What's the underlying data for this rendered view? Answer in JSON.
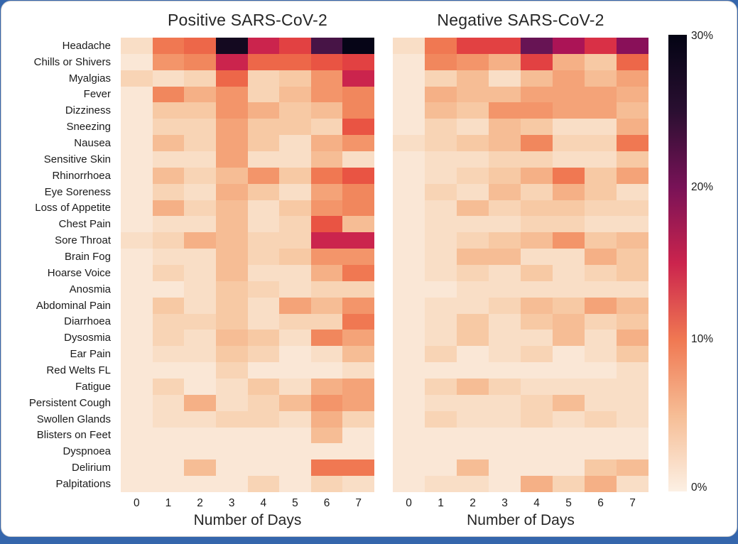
{
  "page": {
    "background_color": "#3566ac",
    "card_background": "#ffffff",
    "card_border_color": "#cccccc"
  },
  "colorbar": {
    "tick_labels": [
      "30%",
      "20%",
      "10%",
      "0%"
    ],
    "tick_values_percent": [
      30,
      20,
      10,
      0
    ],
    "orientation": "vertical",
    "position": "right"
  },
  "colors": {
    "rocket_r_scale_0_to_30": [
      "#FCF0E4",
      "#FAE7D6",
      "#F9DEC6",
      "#F8D4B5",
      "#F7C9A4",
      "#F6BD95",
      "#F5B086",
      "#F4A378",
      "#F3956A",
      "#F1875D",
      "#F07852",
      "#ED6749",
      "#E95443",
      "#E24142",
      "#D93046",
      "#CB244D",
      "#BB1A52",
      "#AB1456",
      "#9A1158",
      "#891059",
      "#781257",
      "#671454",
      "#57154E",
      "#471446",
      "#38123C",
      "#2A0F31",
      "#1E0C27",
      "#140920",
      "#0C071B",
      "#060517",
      "#030414"
    ]
  },
  "chart_data": [
    {
      "type": "heatmap",
      "title": "Positive SARS-CoV-2",
      "xlabel": "Number of Days",
      "colormap": "rocket_r",
      "vmin_percent": 0,
      "vmax_percent": 30,
      "grid": false,
      "columns": [
        "0",
        "1",
        "2",
        "3",
        "4",
        "5",
        "6",
        "7"
      ],
      "rows": [
        "Headache",
        "Chills or Shivers",
        "Myalgias",
        "Fever",
        "Dizziness",
        "Sneezing",
        "Nausea",
        "Sensitive Skin",
        "Rhinorrhoea",
        "Eye Soreness",
        "Loss of Appetite",
        "Chest Pain",
        "Sore Throat",
        "Brain Fog",
        "Hoarse Voice",
        "Anosmia",
        "Abdominal Pain",
        "Diarrhoea",
        "Dysosmia",
        "Ear Pain",
        "Red Welts FL",
        "Fatigue",
        "Persistent Cough",
        "Swollen Glands",
        "Blisters on Feet",
        "Dyspnoea",
        "Delirium",
        "Palpitations"
      ],
      "values_percent": [
        [
          2,
          10,
          11,
          27,
          15,
          13,
          23,
          29
        ],
        [
          1,
          8,
          9,
          15,
          11,
          11,
          12,
          13
        ],
        [
          3,
          2,
          3,
          11,
          3,
          4,
          8,
          15
        ],
        [
          1,
          9,
          6,
          8,
          3,
          5,
          8,
          9
        ],
        [
          1,
          4,
          4,
          8,
          6,
          4,
          5,
          9
        ],
        [
          1,
          3,
          3,
          7,
          4,
          4,
          3,
          12
        ],
        [
          1,
          5,
          3,
          7,
          4,
          2,
          6,
          8
        ],
        [
          1,
          2,
          2,
          7,
          2,
          2,
          5,
          2
        ],
        [
          1,
          5,
          3,
          5,
          8,
          4,
          10,
          12
        ],
        [
          1,
          3,
          2,
          6,
          4,
          2,
          7,
          9
        ],
        [
          1,
          6,
          3,
          5,
          2,
          4,
          8,
          9
        ],
        [
          1,
          2,
          2,
          5,
          2,
          3,
          12,
          5
        ],
        [
          2,
          3,
          6,
          5,
          3,
          3,
          15,
          15
        ],
        [
          1,
          2,
          2,
          5,
          3,
          4,
          8,
          8
        ],
        [
          1,
          3,
          2,
          5,
          2,
          2,
          6,
          10
        ],
        [
          1,
          1,
          2,
          4,
          3,
          2,
          3,
          3
        ],
        [
          1,
          4,
          2,
          4,
          2,
          7,
          5,
          8
        ],
        [
          1,
          3,
          3,
          4,
          2,
          3,
          3,
          10
        ],
        [
          1,
          3,
          2,
          5,
          4,
          2,
          9,
          7
        ],
        [
          1,
          2,
          2,
          4,
          3,
          1,
          2,
          5
        ],
        [
          1,
          1,
          1,
          3,
          1,
          1,
          1,
          2
        ],
        [
          1,
          3,
          1,
          2,
          4,
          2,
          6,
          7
        ],
        [
          1,
          2,
          6,
          2,
          3,
          5,
          8,
          7
        ],
        [
          1,
          2,
          2,
          3,
          3,
          2,
          6,
          3
        ],
        [
          1,
          1,
          1,
          1,
          1,
          1,
          5,
          1
        ],
        [
          1,
          1,
          1,
          1,
          1,
          1,
          1,
          1
        ],
        [
          1,
          1,
          5,
          1,
          1,
          1,
          10,
          10
        ],
        [
          1,
          1,
          1,
          1,
          3,
          1,
          3,
          2
        ]
      ]
    },
    {
      "type": "heatmap",
      "title": "Negative SARS-CoV-2",
      "xlabel": "Number of Days",
      "colormap": "rocket_r",
      "vmin_percent": 0,
      "vmax_percent": 30,
      "grid": false,
      "columns": [
        "0",
        "1",
        "2",
        "3",
        "4",
        "5",
        "6",
        "7"
      ],
      "rows": [
        "Headache",
        "Chills or Shivers",
        "Myalgias",
        "Fever",
        "Dizziness",
        "Sneezing",
        "Nausea",
        "Sensitive Skin",
        "Rhinorrhoea",
        "Eye Soreness",
        "Loss of Appetite",
        "Chest Pain",
        "Sore Throat",
        "Brain Fog",
        "Hoarse Voice",
        "Anosmia",
        "Abdominal Pain",
        "Diarrhoea",
        "Dysosmia",
        "Ear Pain",
        "Red Welts FL",
        "Fatigue",
        "Persistent Cough",
        "Swollen Glands",
        "Blisters on Feet",
        "Dyspnoea",
        "Delirium",
        "Palpitations"
      ],
      "values_percent": [
        [
          2,
          10,
          13,
          13,
          21,
          17,
          14,
          19
        ],
        [
          1,
          9,
          8,
          6,
          13,
          6,
          4,
          11
        ],
        [
          1,
          3,
          5,
          2,
          5,
          7,
          5,
          7
        ],
        [
          1,
          6,
          5,
          5,
          7,
          7,
          7,
          6
        ],
        [
          1,
          5,
          4,
          8,
          8,
          7,
          7,
          5
        ],
        [
          1,
          3,
          2,
          5,
          4,
          2,
          2,
          6
        ],
        [
          2,
          3,
          4,
          5,
          9,
          3,
          3,
          10
        ],
        [
          1,
          2,
          2,
          3,
          3,
          2,
          2,
          4
        ],
        [
          1,
          2,
          3,
          4,
          6,
          10,
          4,
          7
        ],
        [
          1,
          3,
          2,
          5,
          3,
          6,
          4,
          2
        ],
        [
          1,
          2,
          5,
          3,
          4,
          4,
          3,
          3
        ],
        [
          1,
          2,
          2,
          2,
          3,
          3,
          2,
          2
        ],
        [
          1,
          2,
          3,
          4,
          5,
          8,
          4,
          5
        ],
        [
          1,
          2,
          5,
          5,
          2,
          2,
          6,
          4
        ],
        [
          1,
          2,
          3,
          2,
          4,
          2,
          3,
          4
        ],
        [
          1,
          1,
          2,
          2,
          2,
          2,
          2,
          2
        ],
        [
          1,
          2,
          2,
          3,
          5,
          4,
          7,
          5
        ],
        [
          1,
          2,
          4,
          2,
          4,
          5,
          3,
          4
        ],
        [
          1,
          2,
          4,
          2,
          2,
          5,
          2,
          6
        ],
        [
          1,
          3,
          1,
          2,
          3,
          1,
          2,
          4
        ],
        [
          1,
          1,
          1,
          1,
          1,
          1,
          1,
          2
        ],
        [
          1,
          3,
          5,
          3,
          2,
          2,
          2,
          2
        ],
        [
          1,
          2,
          2,
          2,
          3,
          5,
          2,
          2
        ],
        [
          1,
          3,
          2,
          2,
          3,
          2,
          3,
          2
        ],
        [
          1,
          1,
          1,
          1,
          1,
          1,
          1,
          1
        ],
        [
          1,
          1,
          1,
          1,
          1,
          1,
          1,
          1
        ],
        [
          1,
          1,
          5,
          1,
          1,
          1,
          4,
          5
        ],
        [
          1,
          2,
          2,
          1,
          6,
          3,
          6,
          2
        ]
      ]
    }
  ]
}
